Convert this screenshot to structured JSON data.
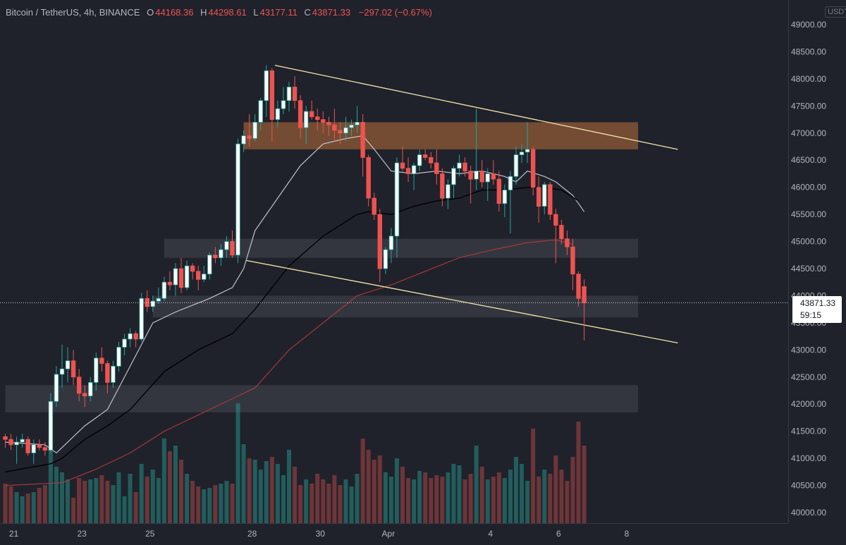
{
  "header": {
    "symbol": "Bitcoin / TetherUS, 4h, BINANCE",
    "ohlc": [
      {
        "label": "O",
        "value": "44168.36"
      },
      {
        "label": "H",
        "value": "44298.61"
      },
      {
        "label": "L",
        "value": "43177.11"
      },
      {
        "label": "C",
        "value": "43871.33"
      }
    ],
    "change": "−297.02 (−0.67%)"
  },
  "axis_unit": "USDT",
  "last_price": {
    "value": "43871.33",
    "countdown": "59:15"
  },
  "colors": {
    "background": "#1f222b",
    "up": "#26a69a",
    "down": "#ef5350",
    "up_body": "#ffffff",
    "trendline": "#f5e6a8",
    "resistance_zone": "#b8703a",
    "support_zone": "#5d606b",
    "ma_fast": "#d1d4dc",
    "ma_mid": "#000000",
    "ma_slow": "#b23a3a"
  },
  "chart_data": {
    "type": "candlestick",
    "title": "",
    "xlabel": "",
    "ylabel": "",
    "ylim": [
      40000,
      49000
    ],
    "grid": false,
    "y_ticks": [
      "49000.00",
      "48500.00",
      "48000.00",
      "47500.00",
      "47000.00",
      "46500.00",
      "46000.00",
      "45500.00",
      "45000.00",
      "44500.00",
      "44000.00",
      "43500.00",
      "43000.00",
      "42500.00",
      "42000.00",
      "41500.00",
      "41000.00",
      "40500.00",
      "40000.00"
    ],
    "x_ticks": [
      {
        "label": "21",
        "index": 1.5
      },
      {
        "label": "23",
        "index": 13.5
      },
      {
        "label": "25",
        "index": 25.5
      },
      {
        "label": "28",
        "index": 43.5
      },
      {
        "label": "30",
        "index": 55.5
      },
      {
        "label": "Apr",
        "index": 67.5
      },
      {
        "label": "4",
        "index": 85.5
      },
      {
        "label": "6",
        "index": 97.5
      },
      {
        "label": "8",
        "index": 109.5
      }
    ],
    "zones": [
      {
        "kind": "resistance",
        "from_index": 42,
        "to_index": 111.5,
        "y_low": 46700,
        "y_high": 47200
      },
      {
        "kind": "support",
        "from_index": 28,
        "to_index": 111.5,
        "y_low": 44700,
        "y_high": 45050
      },
      {
        "kind": "support",
        "from_index": 26,
        "to_index": 111.5,
        "y_low": 43600,
        "y_high": 44000
      },
      {
        "kind": "support",
        "from_index": 0,
        "to_index": 111.5,
        "y_low": 41850,
        "y_high": 42350
      }
    ],
    "trendlines": [
      {
        "x1": 47.5,
        "y1": 48250,
        "x2": 118.5,
        "y2": 46700
      },
      {
        "x1": 42.5,
        "y1": 44650,
        "x2": 118.5,
        "y2": 43130
      }
    ],
    "moving_averages": [
      {
        "key": "fast",
        "points": [
          [
            0,
            41300
          ],
          [
            7,
            41250
          ],
          [
            9,
            41100
          ],
          [
            14,
            41600
          ],
          [
            18,
            41900
          ],
          [
            22,
            42700
          ],
          [
            26,
            43500
          ],
          [
            30,
            43700
          ],
          [
            36,
            43950
          ],
          [
            40,
            44150
          ],
          [
            42,
            44500
          ],
          [
            44,
            45200
          ],
          [
            48,
            45800
          ],
          [
            52,
            46400
          ],
          [
            56,
            46800
          ],
          [
            60,
            46900
          ],
          [
            63,
            46950
          ],
          [
            65,
            46700
          ],
          [
            68,
            46300
          ],
          [
            72,
            46250
          ],
          [
            76,
            46300
          ],
          [
            80,
            46250
          ],
          [
            84,
            46300
          ],
          [
            88,
            46200
          ],
          [
            90,
            46100
          ],
          [
            92,
            46300
          ],
          [
            95,
            46200
          ],
          [
            97,
            46100
          ],
          [
            100,
            45850
          ],
          [
            102,
            45550
          ]
        ]
      },
      {
        "key": "mid",
        "points": [
          [
            0,
            40750
          ],
          [
            8,
            40900
          ],
          [
            10,
            41000
          ],
          [
            14,
            41350
          ],
          [
            18,
            41600
          ],
          [
            22,
            41900
          ],
          [
            28,
            42600
          ],
          [
            34,
            43000
          ],
          [
            40,
            43300
          ],
          [
            44,
            43750
          ],
          [
            50,
            44550
          ],
          [
            56,
            45100
          ],
          [
            62,
            45500
          ],
          [
            64,
            45550
          ],
          [
            68,
            45500
          ],
          [
            72,
            45650
          ],
          [
            76,
            45750
          ],
          [
            80,
            45800
          ],
          [
            84,
            45950
          ],
          [
            88,
            45950
          ],
          [
            92,
            46000
          ],
          [
            95,
            46000
          ],
          [
            98,
            45950
          ],
          [
            101,
            45750
          ]
        ]
      },
      {
        "key": "slow",
        "points": [
          [
            0,
            40500
          ],
          [
            10,
            40550
          ],
          [
            16,
            40800
          ],
          [
            22,
            41100
          ],
          [
            28,
            41500
          ],
          [
            34,
            41800
          ],
          [
            40,
            42100
          ],
          [
            44,
            42300
          ],
          [
            50,
            43000
          ],
          [
            56,
            43500
          ],
          [
            62,
            44000
          ],
          [
            68,
            44200
          ],
          [
            74,
            44450
          ],
          [
            80,
            44700
          ],
          [
            86,
            44850
          ],
          [
            92,
            44980
          ],
          [
            97,
            45030
          ],
          [
            100,
            44950
          ]
        ]
      }
    ],
    "candles": [
      [
        41400,
        41450,
        41200,
        41350
      ],
      [
        41350,
        41450,
        41150,
        41250
      ],
      [
        41250,
        41400,
        40900,
        41300
      ],
      [
        41300,
        41450,
        41200,
        41350
      ],
      [
        41350,
        41400,
        41050,
        41100
      ],
      [
        41100,
        41350,
        40900,
        41250
      ],
      [
        41250,
        41350,
        41150,
        41200
      ],
      [
        41200,
        41300,
        41050,
        41150
      ],
      [
        41150,
        42200,
        41100,
        42050
      ],
      [
        42050,
        42700,
        41950,
        42550
      ],
      [
        42550,
        43100,
        42300,
        42650
      ],
      [
        42650,
        43050,
        42400,
        42800
      ],
      [
        42800,
        43000,
        42350,
        42500
      ],
      [
        42500,
        42650,
        42050,
        42200
      ],
      [
        42200,
        42350,
        41950,
        42150
      ],
      [
        42150,
        42500,
        42050,
        42400
      ],
      [
        42400,
        42950,
        42250,
        42850
      ],
      [
        42850,
        43050,
        42600,
        42750
      ],
      [
        42750,
        42800,
        42200,
        42400
      ],
      [
        42400,
        42800,
        42300,
        42700
      ],
      [
        42700,
        43150,
        42600,
        43050
      ],
      [
        43050,
        43300,
        42900,
        43200
      ],
      [
        43200,
        43400,
        43050,
        43300
      ],
      [
        43300,
        43350,
        43050,
        43200
      ],
      [
        43200,
        44050,
        43150,
        43950
      ],
      [
        43950,
        44100,
        43700,
        43800
      ],
      [
        43800,
        44000,
        43700,
        43900
      ],
      [
        43900,
        44150,
        43850,
        43950
      ],
      [
        43950,
        44350,
        43900,
        44250
      ],
      [
        44250,
        44450,
        44100,
        44200
      ],
      [
        44200,
        44600,
        44000,
        44500
      ],
      [
        44500,
        44700,
        44050,
        44150
      ],
      [
        44150,
        44650,
        44100,
        44550
      ],
      [
        44550,
        44600,
        44300,
        44450
      ],
      [
        44450,
        44550,
        44100,
        44300
      ],
      [
        44300,
        44550,
        44250,
        44400
      ],
      [
        44400,
        44800,
        44300,
        44750
      ],
      [
        44750,
        44900,
        44600,
        44700
      ],
      [
        44700,
        44950,
        44550,
        44850
      ],
      [
        44850,
        45100,
        44700,
        45000
      ],
      [
        45000,
        45200,
        44700,
        44750
      ],
      [
        44750,
        46900,
        44600,
        46800
      ],
      [
        46800,
        47050,
        46650,
        46950
      ],
      [
        46950,
        47350,
        46750,
        46900
      ],
      [
        46900,
        47350,
        46850,
        47200
      ],
      [
        47200,
        47650,
        47050,
        47600
      ],
      [
        47600,
        48250,
        47300,
        48150
      ],
      [
        48150,
        48200,
        46850,
        47250
      ],
      [
        47250,
        47600,
        47100,
        47450
      ],
      [
        47450,
        47850,
        47350,
        47600
      ],
      [
        47600,
        47950,
        47400,
        47850
      ],
      [
        47850,
        48050,
        47450,
        47600
      ],
      [
        47600,
        47700,
        46900,
        47100
      ],
      [
        47100,
        47500,
        46800,
        47400
      ],
      [
        47400,
        47600,
        47250,
        47300
      ],
      [
        47300,
        47450,
        47050,
        47250
      ],
      [
        47250,
        47400,
        47000,
        47200
      ],
      [
        47200,
        47300,
        46950,
        47150
      ],
      [
        47150,
        47450,
        46850,
        47050
      ],
      [
        47050,
        47200,
        46800,
        47000
      ],
      [
        47000,
        47300,
        46850,
        47100
      ],
      [
        47100,
        47250,
        46950,
        47150
      ],
      [
        47150,
        47500,
        47000,
        47200
      ],
      [
        47200,
        47350,
        46200,
        46550
      ],
      [
        46550,
        46600,
        45650,
        45800
      ],
      [
        45800,
        45900,
        45400,
        45500
      ],
      [
        45500,
        45600,
        44250,
        44500
      ],
      [
        44500,
        44900,
        44400,
        44850
      ],
      [
        44850,
        45250,
        44600,
        45100
      ],
      [
        45100,
        46550,
        44700,
        46450
      ],
      [
        46450,
        46750,
        46300,
        46350
      ],
      [
        46350,
        46550,
        46100,
        46250
      ],
      [
        46250,
        46450,
        45950,
        46400
      ],
      [
        46400,
        46700,
        46300,
        46600
      ],
      [
        46600,
        46700,
        46500,
        46550
      ],
      [
        46550,
        46650,
        46350,
        46450
      ],
      [
        46450,
        46700,
        46050,
        46250
      ],
      [
        46250,
        46350,
        45650,
        45800
      ],
      [
        45800,
        46150,
        45600,
        46050
      ],
      [
        46050,
        46400,
        45800,
        46350
      ],
      [
        46350,
        46600,
        46200,
        46450
      ],
      [
        46450,
        46550,
        46200,
        46300
      ],
      [
        46300,
        46400,
        45700,
        46150
      ],
      [
        46150,
        47450,
        45950,
        46300
      ],
      [
        46300,
        46500,
        46000,
        46100
      ],
      [
        46100,
        46350,
        45750,
        46250
      ],
      [
        46250,
        46500,
        46050,
        46150
      ],
      [
        46150,
        46300,
        45550,
        45700
      ],
      [
        45700,
        46050,
        45450,
        45950
      ],
      [
        45950,
        46300,
        45150,
        46200
      ],
      [
        46200,
        46750,
        46050,
        46600
      ],
      [
        46600,
        46800,
        46450,
        46650
      ],
      [
        46650,
        47200,
        46450,
        46700
      ],
      [
        46700,
        46750,
        45850,
        46000
      ],
      [
        46000,
        46200,
        45350,
        45650
      ],
      [
        45650,
        46100,
        45500,
        46050
      ],
      [
        46050,
        46100,
        45400,
        45500
      ],
      [
        45500,
        45600,
        44600,
        45300
      ],
      [
        45300,
        45400,
        44950,
        45050
      ],
      [
        45050,
        45200,
        44750,
        44900
      ],
      [
        44900,
        45050,
        44100,
        44400
      ],
      [
        44400,
        44450,
        43800,
        43950
      ],
      [
        44168.36,
        44298.61,
        43177.11,
        43871.33
      ]
    ],
    "volumes": [
      28,
      26,
      22,
      19,
      21,
      22,
      25,
      27,
      55,
      40,
      36,
      31,
      18,
      32,
      30,
      31,
      32,
      34,
      30,
      27,
      36,
      19,
      35,
      22,
      42,
      33,
      38,
      32,
      60,
      51,
      55,
      45,
      35,
      30,
      26,
      24,
      25,
      27,
      28,
      30,
      28,
      85,
      56,
      46,
      45,
      38,
      44,
      47,
      42,
      34,
      52,
      40,
      27,
      31,
      28,
      35,
      31,
      28,
      34,
      27,
      31,
      26,
      35,
      60,
      52,
      45,
      48,
      36,
      33,
      46,
      40,
      32,
      31,
      37,
      36,
      32,
      34,
      33,
      36,
      42,
      41,
      31,
      35,
      55,
      40,
      31,
      33,
      36,
      32,
      38,
      47,
      42,
      30,
      67,
      33,
      38,
      35,
      48,
      38,
      30,
      47,
      72,
      55
    ]
  }
}
